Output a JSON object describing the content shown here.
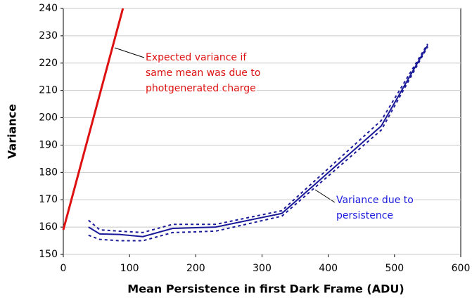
{
  "chart_data": {
    "type": "line",
    "xlabel": "Mean Persistence in first Dark Frame  (ADU)",
    "ylabel": "Variance",
    "xlim": [
      0,
      600
    ],
    "xticks": [
      0,
      100,
      200,
      300,
      400,
      500,
      600
    ],
    "ylim": [
      150,
      240
    ],
    "yticks": [
      150,
      160,
      170,
      180,
      190,
      200,
      210,
      220,
      230,
      240
    ],
    "grid": true,
    "series": [
      {
        "color": "#dd1111",
        "style": "solid",
        "width": 3,
        "x": [
          0,
          90
        ],
        "values": [
          159,
          240
        ]
      },
      {
        "color": "#1a1a99",
        "style": "solid",
        "width": 2,
        "x": [
          38,
          55,
          85,
          120,
          165,
          230,
          330,
          480,
          550
        ],
        "values": [
          160,
          157.5,
          157.3,
          156.5,
          159.5,
          160,
          165,
          197,
          226.5
        ]
      },
      {
        "color": "#1a1a99",
        "style": "dashed",
        "width": 2,
        "x": [
          38,
          55,
          85,
          120,
          165,
          230,
          330,
          480,
          550
        ],
        "values": [
          162.5,
          159,
          158.5,
          158,
          161,
          161,
          166,
          199,
          227
        ]
      },
      {
        "color": "#1a1a99",
        "style": "dashed",
        "width": 2,
        "x": [
          38,
          55,
          85,
          120,
          165,
          230,
          330,
          480,
          550
        ],
        "values": [
          157,
          155.5,
          155,
          155,
          158,
          158.5,
          164,
          195.5,
          226
        ]
      }
    ],
    "annotations": [
      {
        "color": "#dd1111",
        "lines": [
          "Expected variance if",
          "same mean was due to",
          "photgenerated charge"
        ]
      },
      {
        "color": "#1a1add",
        "lines": [
          "Variance due to",
          "persistence"
        ]
      }
    ]
  }
}
